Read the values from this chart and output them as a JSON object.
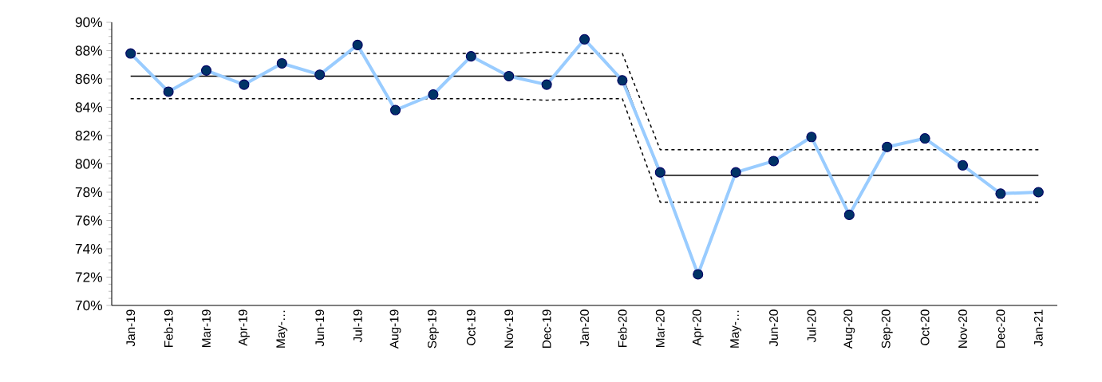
{
  "chart_data": {
    "type": "line",
    "categories": [
      "Jan-19",
      "Feb-19",
      "Mar-19",
      "Apr-19",
      "May-…",
      "Jun-19",
      "Jul-19",
      "Aug-19",
      "Sep-19",
      "Oct-19",
      "Nov-19",
      "Dec-19",
      "Jan-20",
      "Feb-20",
      "Mar-20",
      "Apr-20",
      "May-…",
      "Jun-20",
      "Jul-20",
      "Aug-20",
      "Sep-20",
      "Oct-20",
      "Nov-20",
      "Dec-20",
      "Jan-21"
    ],
    "series": [
      {
        "color": "#000000",
        "line_style": "solid",
        "marker": "none",
        "values": [
          86.2,
          86.2,
          86.2,
          86.2,
          86.2,
          86.2,
          86.2,
          86.2,
          86.2,
          86.2,
          86.2,
          86.2,
          86.2,
          86.2,
          79.2,
          79.2,
          79.2,
          79.2,
          79.2,
          79.2,
          79.2,
          79.2,
          79.2,
          79.2,
          79.2
        ]
      },
      {
        "color": "#000000",
        "line_style": "dashed",
        "marker": "none",
        "values": [
          87.8,
          87.8,
          87.8,
          87.8,
          87.8,
          87.8,
          87.8,
          87.8,
          87.8,
          87.8,
          87.8,
          87.9,
          87.8,
          87.8,
          81.0,
          81.0,
          81.0,
          81.0,
          81.0,
          81.0,
          81.0,
          81.0,
          81.0,
          81.0,
          81.0
        ]
      },
      {
        "color": "#000000",
        "line_style": "dashed",
        "marker": "none",
        "values": [
          84.6,
          84.6,
          84.6,
          84.6,
          84.6,
          84.6,
          84.6,
          84.6,
          84.6,
          84.6,
          84.6,
          84.5,
          84.6,
          84.6,
          77.3,
          77.3,
          77.3,
          77.3,
          77.3,
          77.3,
          77.3,
          77.3,
          77.3,
          77.3,
          77.3
        ]
      },
      {
        "color": "#99ccff",
        "line_style": "solid",
        "marker": "circle",
        "values": [
          87.8,
          85.1,
          86.6,
          85.6,
          87.1,
          86.3,
          88.4,
          83.8,
          84.9,
          87.6,
          86.2,
          85.6,
          88.8,
          85.9,
          79.4,
          72.2,
          79.4,
          80.2,
          81.9,
          76.4,
          81.2,
          81.8,
          79.9,
          77.9,
          78.0
        ]
      }
    ],
    "ylim": [
      70,
      90
    ],
    "yticks": [
      {
        "value": 70,
        "label": "70%"
      },
      {
        "value": 72,
        "label": "72%"
      },
      {
        "value": 74,
        "label": "74%"
      },
      {
        "value": 76,
        "label": "76%"
      },
      {
        "value": 78,
        "label": "78%"
      },
      {
        "value": 80,
        "label": "80%"
      },
      {
        "value": 82,
        "label": "82%"
      },
      {
        "value": 84,
        "label": "84%"
      },
      {
        "value": 86,
        "label": "86%"
      },
      {
        "value": 88,
        "label": "88%"
      },
      {
        "value": 90,
        "label": "90%"
      }
    ],
    "grid": false,
    "legend": false
  }
}
